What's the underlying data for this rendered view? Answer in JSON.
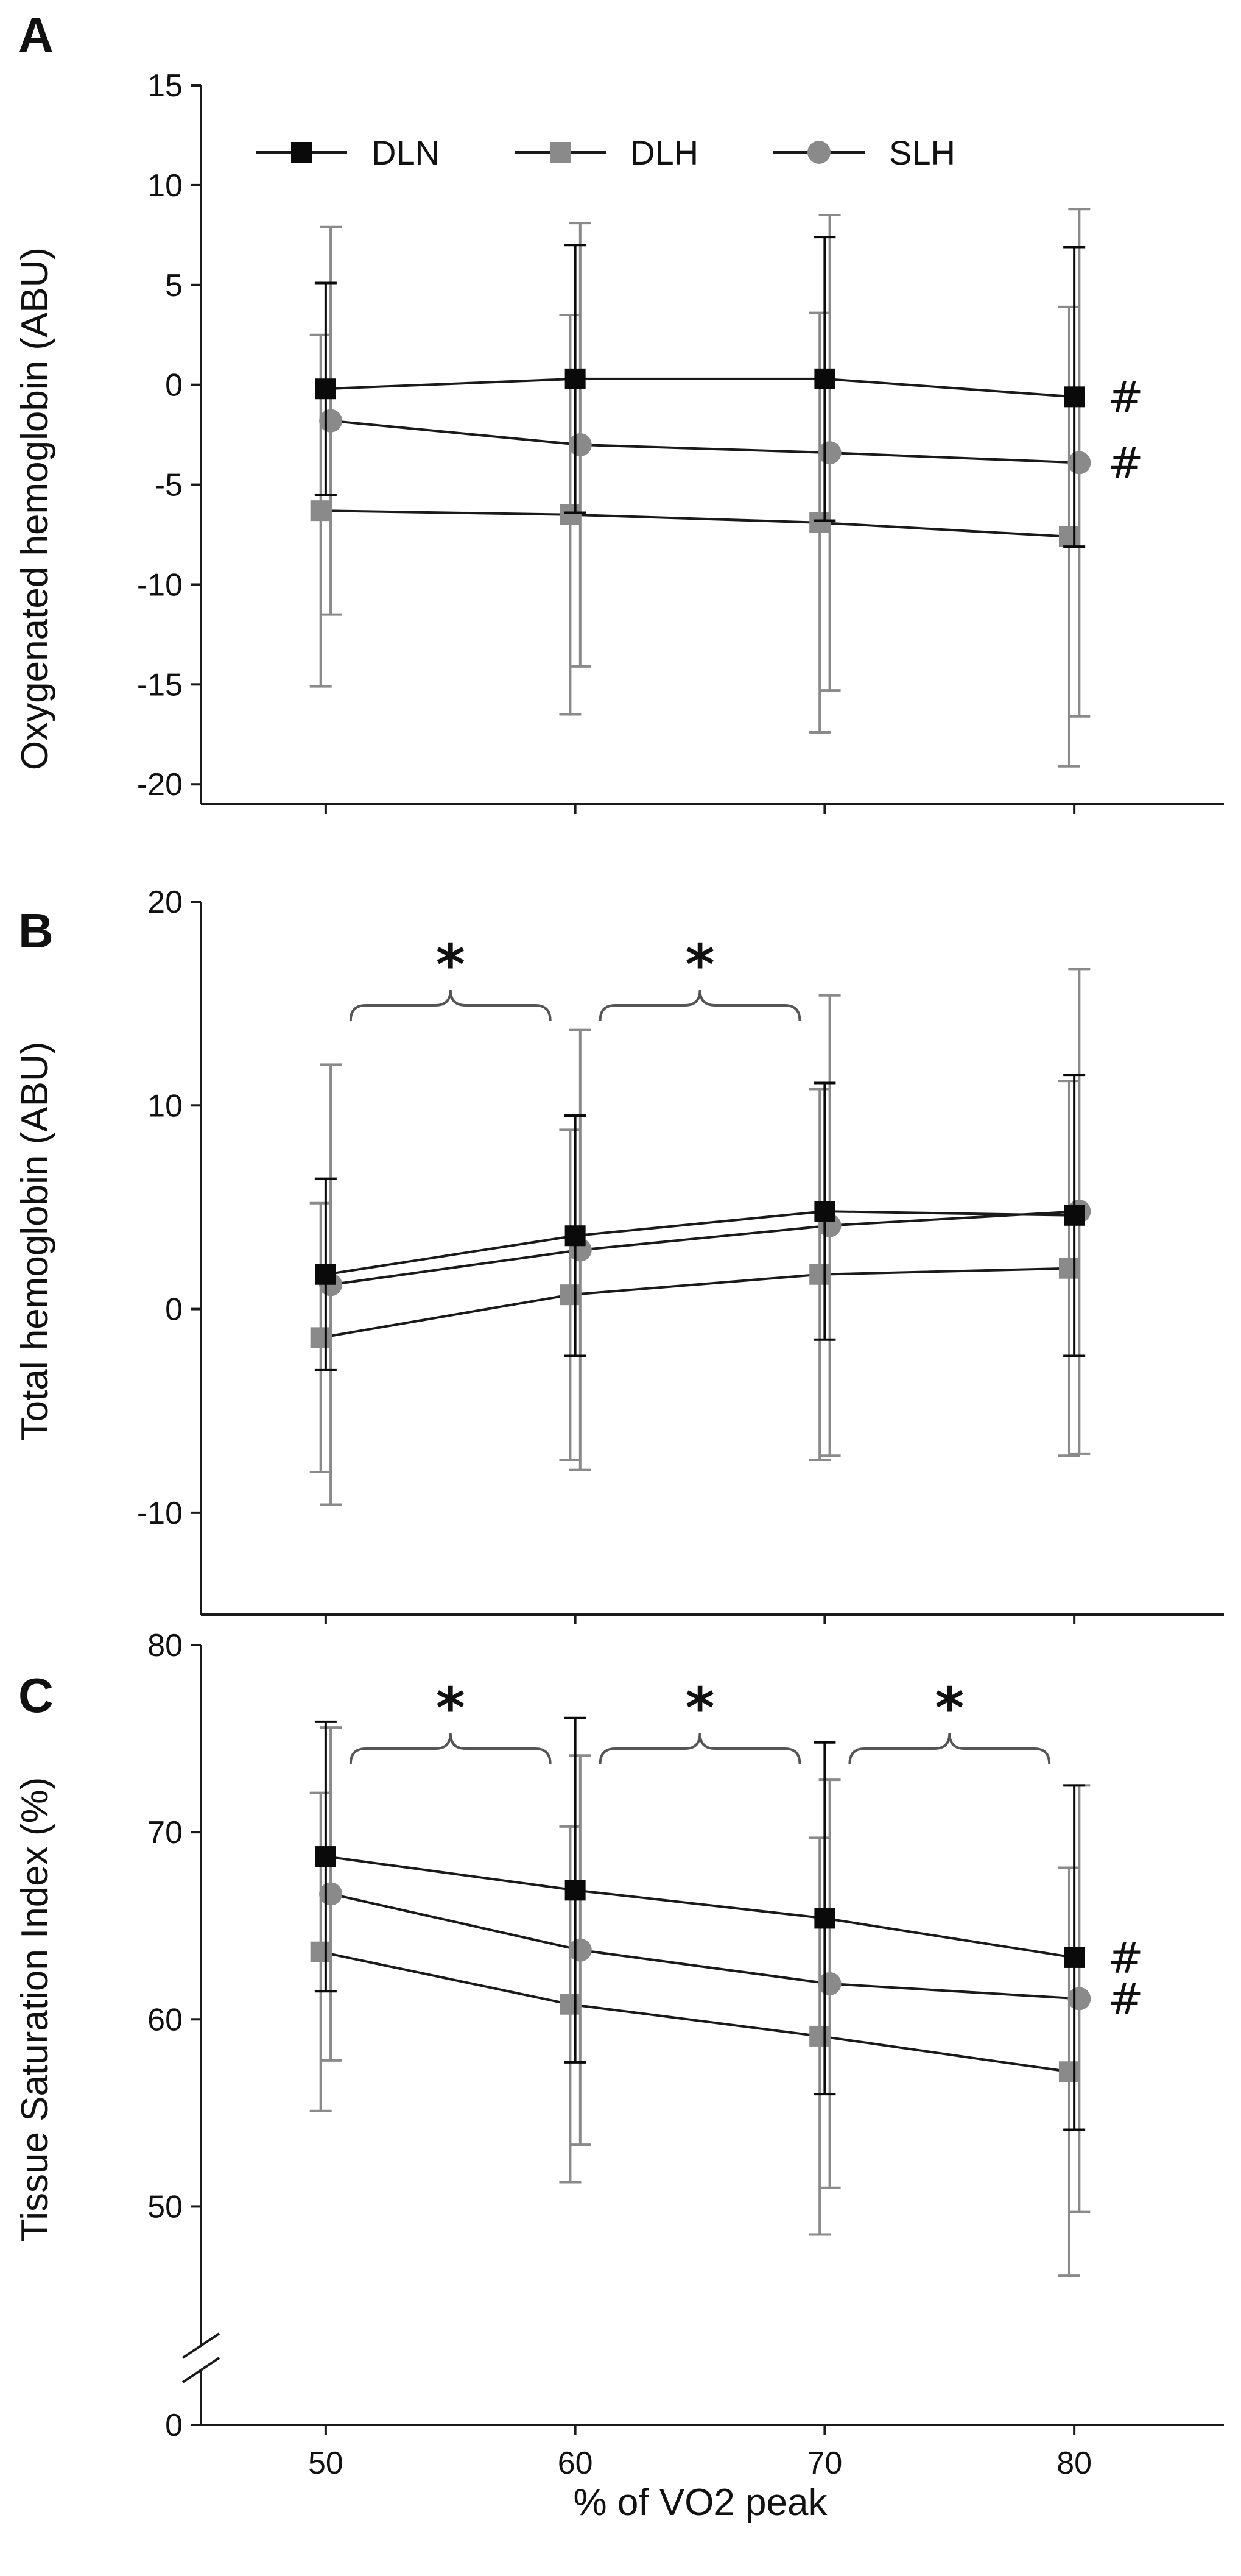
{
  "chart_data": [
    {
      "panel": "A",
      "type": "line",
      "ylabel": "Oxygenated hemoglobin (ABU)",
      "xlabel": "",
      "x": [
        50,
        60,
        70,
        80
      ],
      "ylim": [
        -21,
        15
      ],
      "yticks": [
        15,
        10,
        5,
        0,
        -5,
        -10,
        -15,
        -20
      ],
      "xticks": [
        50,
        60,
        70,
        80
      ],
      "legend": {
        "position": "top-left",
        "entries": [
          "DLN",
          "DLH",
          "SLH"
        ]
      },
      "series": [
        {
          "name": "DLN",
          "color": "#0a0a0a",
          "marker": "square",
          "values": [
            -0.2,
            0.3,
            0.3,
            -0.6
          ],
          "err": [
            5.3,
            6.7,
            7.1,
            7.5
          ],
          "x_offset": 0
        },
        {
          "name": "DLH",
          "color": "#8a8a8a",
          "marker": "square",
          "values": [
            -6.3,
            -6.5,
            -6.9,
            -7.6
          ],
          "err": [
            8.8,
            10.0,
            10.5,
            11.5
          ],
          "x_offset": -0.2
        },
        {
          "name": "SLH",
          "color": "#8a8a8a",
          "marker": "circle",
          "values": [
            -1.8,
            -3.0,
            -3.4,
            -3.9
          ],
          "err": [
            9.7,
            11.1,
            11.9,
            12.7
          ],
          "x_offset": 0.2
        }
      ],
      "annotations": [
        {
          "type": "hash",
          "text": "#",
          "series": "DLN",
          "x": 80
        },
        {
          "type": "hash",
          "text": "#",
          "series": "SLH",
          "x": 80
        }
      ]
    },
    {
      "panel": "B",
      "type": "line",
      "ylabel": "Total hemoglobin (ABU)",
      "xlabel": "",
      "x": [
        50,
        60,
        70,
        80
      ],
      "ylim": [
        -15,
        20
      ],
      "yticks": [
        20,
        10,
        0,
        -10
      ],
      "xticks": [
        50,
        60,
        70,
        80
      ],
      "series": [
        {
          "name": "DLN",
          "color": "#0a0a0a",
          "marker": "square",
          "values": [
            1.7,
            3.6,
            4.8,
            4.6
          ],
          "err": [
            4.7,
            5.9,
            6.3,
            6.9
          ],
          "x_offset": 0
        },
        {
          "name": "DLH",
          "color": "#8a8a8a",
          "marker": "square",
          "values": [
            -1.4,
            0.7,
            1.7,
            2.0
          ],
          "err": [
            6.6,
            8.1,
            9.1,
            9.2
          ],
          "x_offset": -0.2
        },
        {
          "name": "SLH",
          "color": "#8a8a8a",
          "marker": "circle",
          "values": [
            1.2,
            2.9,
            4.1,
            4.8
          ],
          "err": [
            10.8,
            10.8,
            11.3,
            11.9
          ],
          "x_offset": 0.2
        }
      ],
      "annotations": [
        {
          "type": "bracket",
          "text": "*",
          "from": 51,
          "to": 59
        },
        {
          "type": "bracket",
          "text": "*",
          "from": 61,
          "to": 69
        }
      ]
    },
    {
      "panel": "C",
      "type": "line",
      "ylabel": "Tissue Saturation Index (%)",
      "xlabel": "% of VO2 peak",
      "x": [
        50,
        60,
        70,
        80
      ],
      "ylim": [
        0,
        80
      ],
      "axis_break": [
        0,
        45
      ],
      "yticks": [
        80,
        70,
        60,
        50,
        0
      ],
      "xticks": [
        50,
        60,
        70,
        80
      ],
      "series": [
        {
          "name": "DLN",
          "color": "#0a0a0a",
          "marker": "square",
          "values": [
            68.7,
            66.9,
            65.4,
            63.3
          ],
          "err": [
            7.2,
            9.2,
            9.4,
            9.2
          ],
          "x_offset": 0
        },
        {
          "name": "DLH",
          "color": "#8a8a8a",
          "marker": "square",
          "values": [
            63.6,
            60.8,
            59.1,
            57.2
          ],
          "err": [
            8.5,
            9.5,
            10.6,
            10.9
          ],
          "x_offset": -0.2
        },
        {
          "name": "SLH",
          "color": "#8a8a8a",
          "marker": "circle",
          "values": [
            66.7,
            63.7,
            61.9,
            61.1
          ],
          "err": [
            8.9,
            10.4,
            10.9,
            11.4
          ],
          "x_offset": 0.2
        }
      ],
      "annotations": [
        {
          "type": "bracket",
          "text": "*",
          "from": 51,
          "to": 59
        },
        {
          "type": "bracket",
          "text": "*",
          "from": 61,
          "to": 69
        },
        {
          "type": "bracket",
          "text": "*",
          "from": 71,
          "to": 79
        },
        {
          "type": "hash",
          "text": "#",
          "series": "DLN",
          "x": 80
        },
        {
          "type": "hash",
          "text": "#",
          "series": "SLH",
          "x": 80
        }
      ]
    }
  ]
}
